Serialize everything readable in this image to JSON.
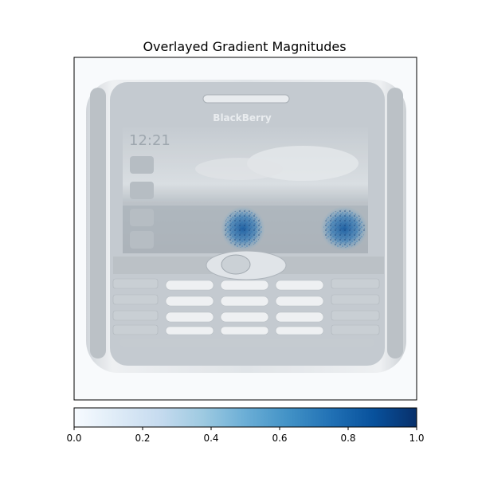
{
  "chart_data": {
    "type": "heatmap",
    "title": "Overlayed Gradient Magnitudes",
    "xlabel": "",
    "ylabel": "",
    "axes_ticks_visible": false,
    "background_image": "grayscale photo of a BlackBerry smartphone with a QWERTY keyboard",
    "phone_brand_text": "BlackBerry",
    "phone_clock_text": "12:21",
    "colormap": "Blues",
    "overlay_alpha": 0.7,
    "hotspots": [
      {
        "label": "upper-middle screen region",
        "intensity": 0.85
      },
      {
        "label": "upper-right screen region",
        "intensity": 0.85
      }
    ],
    "colorbar": {
      "orientation": "horizontal",
      "range": [
        0.0,
        1.0
      ],
      "ticks": [
        0.0,
        0.2,
        0.4,
        0.6,
        0.8,
        1.0
      ],
      "tick_labels": [
        "0.0",
        "0.2",
        "0.4",
        "0.6",
        "0.8",
        "1.0"
      ],
      "colors": {
        "low": "#f7fbff",
        "mid": "#6baed6",
        "high": "#08306b"
      }
    }
  }
}
